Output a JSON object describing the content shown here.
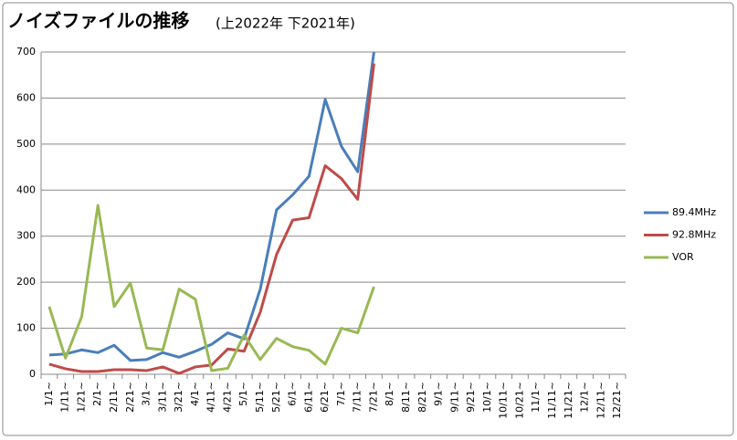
{
  "chart_data": {
    "type": "line",
    "title": "ノイズファイルの推移",
    "subtitle": "(上2022年 下2021年)",
    "categories": [
      "1/1~",
      "1/11~",
      "1/21~",
      "2/1~",
      "2/11~",
      "2/21~",
      "3/1~",
      "3/11~",
      "3/21~",
      "4/1~",
      "4/11~",
      "4/21~",
      "5/1~",
      "5/11~",
      "5/21~",
      "6/1~",
      "6/11~",
      "6/21~",
      "7/1~",
      "7/11~",
      "7/21~",
      "8/1~",
      "8/11~",
      "8/21~",
      "9/1~",
      "9/11~",
      "9/21~",
      "10/1~",
      "10/11~",
      "10/21~",
      "11/1~",
      "11/11~",
      "11/21~",
      "12/1~",
      "12/11~",
      "12/21~"
    ],
    "series": [
      {
        "name": "89.4MHz",
        "color": "#4a7ebb",
        "values": [
          42,
          44,
          53,
          47,
          63,
          30,
          32,
          47,
          37,
          50,
          65,
          90,
          77,
          185,
          357,
          390,
          430,
          597,
          495,
          440,
          700,
          null,
          null,
          null,
          null,
          null,
          null,
          null,
          null,
          null,
          null,
          null,
          null,
          null,
          null,
          null
        ]
      },
      {
        "name": "92.8MHz",
        "color": "#be4b48",
        "values": [
          22,
          12,
          6,
          6,
          10,
          10,
          8,
          16,
          2,
          16,
          20,
          55,
          50,
          135,
          260,
          335,
          340,
          453,
          425,
          380,
          675,
          null,
          null,
          null,
          null,
          null,
          null,
          null,
          null,
          null,
          null,
          null,
          null,
          null,
          null,
          null
        ]
      },
      {
        "name": "VOR",
        "color": "#98b954",
        "values": [
          147,
          35,
          125,
          367,
          147,
          198,
          57,
          53,
          185,
          163,
          8,
          13,
          85,
          32,
          78,
          60,
          52,
          22,
          100,
          90,
          190,
          null,
          null,
          null,
          null,
          null,
          null,
          null,
          null,
          null,
          null,
          null,
          null,
          null,
          null,
          null
        ]
      }
    ],
    "ylim": [
      0,
      700
    ],
    "yticks": [
      0,
      100,
      200,
      300,
      400,
      500,
      600,
      700
    ],
    "grid": true,
    "legend": "right"
  }
}
